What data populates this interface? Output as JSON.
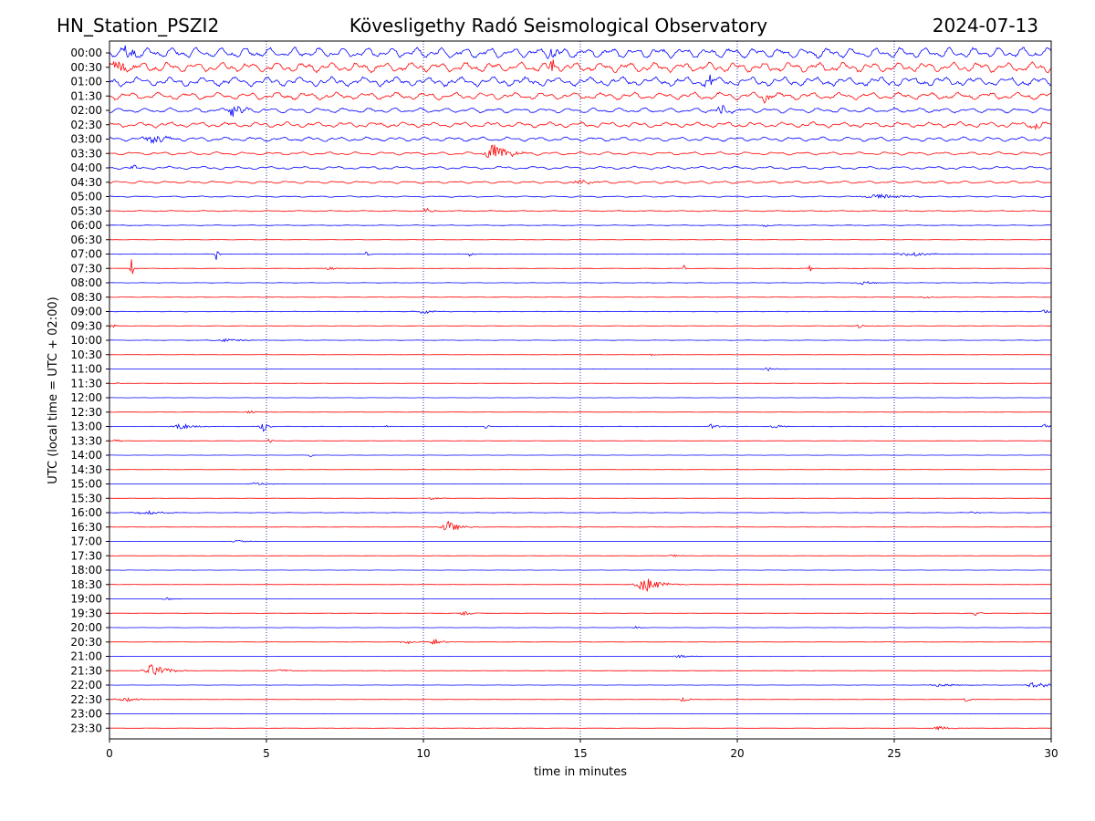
{
  "header": {
    "station": "HN_Station_PSZI2",
    "observatory": "Kövesligethy Radó Seismological Observatory",
    "date": "2024-07-13"
  },
  "chart_data": {
    "type": "line",
    "title": "Kövesligethy Radó Seismological Observatory",
    "xlabel": "time in minutes",
    "ylabel": "UTC (local time = UTC + 02:00)",
    "xlim": [
      0,
      30
    ],
    "xticks": [
      "0",
      "5",
      "10",
      "15",
      "20",
      "25",
      "30"
    ],
    "vertical_gridlines": [
      5,
      10,
      15,
      20,
      25
    ],
    "colors": {
      "even_row": "#0000ff",
      "odd_row": "#ff0000",
      "grid": "#000080",
      "axis": "#000000"
    },
    "rows": [
      {
        "label": "00:00",
        "amplitude": 0.85,
        "events": [
          {
            "t": 0.6,
            "amp": 1.0,
            "dur": 0.5
          },
          {
            "t": 14.1,
            "amp": 0.9,
            "dur": 0.4
          }
        ]
      },
      {
        "label": "00:30",
        "amplitude": 0.8,
        "events": [
          {
            "t": 0.3,
            "amp": 1.0,
            "dur": 0.5
          },
          {
            "t": 14.1,
            "amp": 0.9,
            "dur": 0.4
          }
        ]
      },
      {
        "label": "01:00",
        "amplitude": 0.75,
        "events": [
          {
            "t": 19.1,
            "amp": 1.0,
            "dur": 0.4
          }
        ]
      },
      {
        "label": "01:30",
        "amplitude": 0.6,
        "events": [
          {
            "t": 20.9,
            "amp": 0.8,
            "dur": 0.3
          }
        ]
      },
      {
        "label": "02:00",
        "amplitude": 0.4,
        "events": [
          {
            "t": 4.0,
            "amp": 0.6,
            "dur": 0.8
          },
          {
            "t": 19.5,
            "amp": 0.6,
            "dur": 0.4
          }
        ]
      },
      {
        "label": "02:30",
        "amplitude": 0.45,
        "events": [
          {
            "t": 29.5,
            "amp": 0.5,
            "dur": 0.6
          }
        ]
      },
      {
        "label": "03:00",
        "amplitude": 0.35,
        "events": [
          {
            "t": 1.4,
            "amp": 0.6,
            "dur": 0.8
          }
        ]
      },
      {
        "label": "03:30",
        "amplitude": 0.25,
        "events": [
          {
            "t": 12.3,
            "amp": 1.1,
            "dur": 0.9
          }
        ]
      },
      {
        "label": "04:00",
        "amplitude": 0.25,
        "events": [
          {
            "t": 0.8,
            "amp": 0.6,
            "dur": 0.3
          }
        ]
      },
      {
        "label": "04:30",
        "amplitude": 0.2,
        "events": [
          {
            "t": 15.0,
            "amp": 0.3,
            "dur": 0.8
          }
        ]
      },
      {
        "label": "05:00",
        "amplitude": 0.1,
        "events": [
          {
            "t": 24.5,
            "amp": 0.3,
            "dur": 1.5
          }
        ]
      },
      {
        "label": "05:30",
        "amplitude": 0.08,
        "events": [
          {
            "t": 10.1,
            "amp": 0.3,
            "dur": 0.4
          }
        ]
      },
      {
        "label": "06:00",
        "amplitude": 0.05,
        "events": [
          {
            "t": 20.9,
            "amp": 0.2,
            "dur": 0.3
          }
        ]
      },
      {
        "label": "06:30",
        "amplitude": 0.03,
        "events": []
      },
      {
        "label": "07:00",
        "amplitude": 0.03,
        "events": [
          {
            "t": 3.4,
            "amp": 1.2,
            "dur": 0.1
          },
          {
            "t": 8.2,
            "amp": 0.7,
            "dur": 0.1
          },
          {
            "t": 11.5,
            "amp": 0.6,
            "dur": 0.1
          },
          {
            "t": 25.5,
            "amp": 0.3,
            "dur": 1.2
          }
        ]
      },
      {
        "label": "07:30",
        "amplitude": 0.03,
        "events": [
          {
            "t": 0.7,
            "amp": 1.2,
            "dur": 0.12
          },
          {
            "t": 7.0,
            "amp": 0.2,
            "dur": 0.5
          },
          {
            "t": 18.3,
            "amp": 0.4,
            "dur": 0.1
          },
          {
            "t": 22.3,
            "amp": 0.8,
            "dur": 0.12
          }
        ]
      },
      {
        "label": "08:00",
        "amplitude": 0.03,
        "events": [
          {
            "t": 24.0,
            "amp": 0.3,
            "dur": 0.6
          }
        ]
      },
      {
        "label": "08:30",
        "amplitude": 0.03,
        "events": [
          {
            "t": 26.0,
            "amp": 0.2,
            "dur": 0.4
          }
        ]
      },
      {
        "label": "09:00",
        "amplitude": 0.04,
        "events": [
          {
            "t": 10.0,
            "amp": 0.3,
            "dur": 0.6
          },
          {
            "t": 29.8,
            "amp": 0.3,
            "dur": 0.3
          }
        ]
      },
      {
        "label": "09:30",
        "amplitude": 0.03,
        "events": [
          {
            "t": 0.1,
            "amp": 0.3,
            "dur": 0.2
          },
          {
            "t": 23.9,
            "amp": 0.25,
            "dur": 0.4
          }
        ]
      },
      {
        "label": "10:00",
        "amplitude": 0.03,
        "events": [
          {
            "t": 3.7,
            "amp": 0.2,
            "dur": 1.2
          }
        ]
      },
      {
        "label": "10:30",
        "amplitude": 0.02,
        "events": [
          {
            "t": 17.3,
            "amp": 0.15,
            "dur": 0.3
          }
        ]
      },
      {
        "label": "11:00",
        "amplitude": 0.02,
        "events": [
          {
            "t": 21.0,
            "amp": 0.2,
            "dur": 0.5
          }
        ]
      },
      {
        "label": "11:30",
        "amplitude": 0.02,
        "events": [
          {
            "t": 0.2,
            "amp": 0.2,
            "dur": 0.3
          }
        ]
      },
      {
        "label": "12:00",
        "amplitude": 0.02,
        "events": []
      },
      {
        "label": "12:30",
        "amplitude": 0.02,
        "events": [
          {
            "t": 4.5,
            "amp": 0.2,
            "dur": 0.5
          }
        ]
      },
      {
        "label": "13:00",
        "amplitude": 0.03,
        "events": [
          {
            "t": 2.3,
            "amp": 0.35,
            "dur": 0.9
          },
          {
            "t": 4.9,
            "amp": 0.6,
            "dur": 0.4
          },
          {
            "t": 8.8,
            "amp": 0.3,
            "dur": 0.1
          },
          {
            "t": 12.0,
            "amp": 0.3,
            "dur": 0.2
          },
          {
            "t": 19.2,
            "amp": 0.3,
            "dur": 0.5
          },
          {
            "t": 21.2,
            "amp": 0.25,
            "dur": 0.5
          },
          {
            "t": 29.8,
            "amp": 0.3,
            "dur": 0.3
          }
        ]
      },
      {
        "label": "13:30",
        "amplitude": 0.02,
        "events": [
          {
            "t": 0.2,
            "amp": 0.3,
            "dur": 0.3
          },
          {
            "t": 5.1,
            "amp": 0.3,
            "dur": 0.2
          }
        ]
      },
      {
        "label": "14:00",
        "amplitude": 0.02,
        "events": [
          {
            "t": 6.4,
            "amp": 0.3,
            "dur": 0.1
          }
        ]
      },
      {
        "label": "14:30",
        "amplitude": 0.02,
        "events": []
      },
      {
        "label": "15:00",
        "amplitude": 0.02,
        "events": [
          {
            "t": 4.7,
            "amp": 0.2,
            "dur": 0.7
          }
        ]
      },
      {
        "label": "15:30",
        "amplitude": 0.02,
        "events": [
          {
            "t": 10.3,
            "amp": 0.2,
            "dur": 0.5
          }
        ]
      },
      {
        "label": "16:00",
        "amplitude": 0.03,
        "events": [
          {
            "t": 1.2,
            "amp": 0.3,
            "dur": 1.0
          },
          {
            "t": 27.5,
            "amp": 0.4,
            "dur": 0.2
          }
        ]
      },
      {
        "label": "16:30",
        "amplitude": 0.02,
        "events": [
          {
            "t": 10.8,
            "amp": 0.7,
            "dur": 0.7
          }
        ]
      },
      {
        "label": "17:00",
        "amplitude": 0.02,
        "events": [
          {
            "t": 4.1,
            "amp": 0.2,
            "dur": 0.6
          }
        ]
      },
      {
        "label": "17:30",
        "amplitude": 0.02,
        "events": [
          {
            "t": 18.0,
            "amp": 0.2,
            "dur": 0.5
          }
        ]
      },
      {
        "label": "18:00",
        "amplitude": 0.02,
        "events": []
      },
      {
        "label": "18:30",
        "amplitude": 0.02,
        "events": [
          {
            "t": 17.1,
            "amp": 0.9,
            "dur": 1.0
          }
        ]
      },
      {
        "label": "19:00",
        "amplitude": 0.02,
        "events": [
          {
            "t": 1.8,
            "amp": 0.2,
            "dur": 0.4
          }
        ]
      },
      {
        "label": "19:30",
        "amplitude": 0.02,
        "events": [
          {
            "t": 11.3,
            "amp": 0.3,
            "dur": 0.4
          },
          {
            "t": 27.6,
            "amp": 0.3,
            "dur": 0.3
          }
        ]
      },
      {
        "label": "20:00",
        "amplitude": 0.02,
        "events": [
          {
            "t": 16.8,
            "amp": 0.2,
            "dur": 0.3
          }
        ]
      },
      {
        "label": "20:30",
        "amplitude": 0.02,
        "events": [
          {
            "t": 9.4,
            "amp": 0.4,
            "dur": 0.4
          },
          {
            "t": 10.4,
            "amp": 0.35,
            "dur": 0.6
          }
        ]
      },
      {
        "label": "21:00",
        "amplitude": 0.02,
        "events": [
          {
            "t": 18.2,
            "amp": 0.2,
            "dur": 0.7
          }
        ]
      },
      {
        "label": "21:30",
        "amplitude": 0.02,
        "events": [
          {
            "t": 1.4,
            "amp": 0.8,
            "dur": 0.9
          },
          {
            "t": 5.5,
            "amp": 0.2,
            "dur": 0.7
          }
        ]
      },
      {
        "label": "22:00",
        "amplitude": 0.02,
        "events": [
          {
            "t": 26.5,
            "amp": 0.2,
            "dur": 1.0
          },
          {
            "t": 29.5,
            "amp": 0.5,
            "dur": 0.8
          }
        ]
      },
      {
        "label": "22:30",
        "amplitude": 0.02,
        "events": [
          {
            "t": 0.5,
            "amp": 0.3,
            "dur": 0.9
          },
          {
            "t": 18.3,
            "amp": 0.3,
            "dur": 0.4
          },
          {
            "t": 27.3,
            "amp": 0.3,
            "dur": 0.3
          }
        ]
      },
      {
        "label": "23:00",
        "amplitude": 0.02,
        "events": []
      },
      {
        "label": "23:30",
        "amplitude": 0.02,
        "events": [
          {
            "t": 26.5,
            "amp": 0.25,
            "dur": 0.7
          }
        ]
      }
    ]
  }
}
